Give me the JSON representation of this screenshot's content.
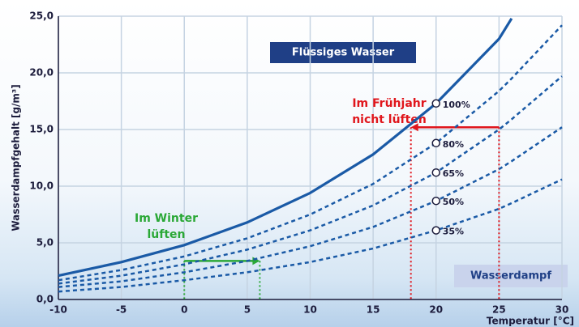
{
  "chart_data": {
    "type": "line",
    "y_label": "Wasserdampfgehalt [g/m³]",
    "x_label": "Temperatur [°C]",
    "x": [
      -10,
      -5,
      0,
      5,
      10,
      15,
      20,
      25,
      26,
      30
    ],
    "xlim": [
      -10,
      30
    ],
    "xticks": [
      -10,
      -5,
      0,
      5,
      10,
      15,
      20,
      25,
      30
    ],
    "ylim": [
      0,
      25
    ],
    "yticks": [
      {
        "value": 0,
        "label": "0,0"
      },
      {
        "value": 5,
        "label": "5,0"
      },
      {
        "value": 10,
        "label": "10,0"
      },
      {
        "value": 15,
        "label": "15,0"
      },
      {
        "value": 20,
        "label": "20,0"
      },
      {
        "value": 25,
        "label": "25,0"
      }
    ],
    "grid": true,
    "series": [
      {
        "name": "100%",
        "color": "#1a5aa6",
        "dashed": false,
        "values": [
          2.1,
          3.3,
          4.8,
          6.8,
          9.4,
          12.8,
          17.3,
          23.0,
          24.8,
          null
        ]
      },
      {
        "name": "80%",
        "color": "#1a5aa6",
        "dashed": true,
        "values": [
          1.7,
          2.6,
          3.8,
          5.4,
          7.5,
          10.2,
          13.8,
          18.4,
          19.5,
          24.2
        ]
      },
      {
        "name": "65%",
        "color": "#1a5aa6",
        "dashed": true,
        "values": [
          1.4,
          2.1,
          3.1,
          4.4,
          6.1,
          8.3,
          11.2,
          15.0,
          15.9,
          19.7
        ]
      },
      {
        "name": "50%",
        "color": "#1a5aa6",
        "dashed": true,
        "values": [
          1.1,
          1.6,
          2.4,
          3.4,
          4.7,
          6.4,
          8.7,
          11.5,
          12.2,
          15.2
        ]
      },
      {
        "name": "35%",
        "color": "#1a5aa6",
        "dashed": true,
        "values": [
          0.7,
          1.1,
          1.7,
          2.4,
          3.3,
          4.5,
          6.1,
          8.0,
          8.5,
          10.6
        ]
      }
    ],
    "regions": [
      "Flüssiges Wasser",
      "Wasserdampf"
    ],
    "annotations": [
      {
        "text": [
          "Im Frühjahr",
          "nicht lüften"
        ],
        "color": "#e0161c",
        "arrow": {
          "x": [
            25,
            18
          ],
          "y": 15.2
        }
      },
      {
        "text": [
          "Im Winter",
          "lüften"
        ],
        "color": "#2aa836",
        "arrow": {
          "x": [
            0,
            6
          ],
          "y": 3.4
        }
      }
    ]
  }
}
